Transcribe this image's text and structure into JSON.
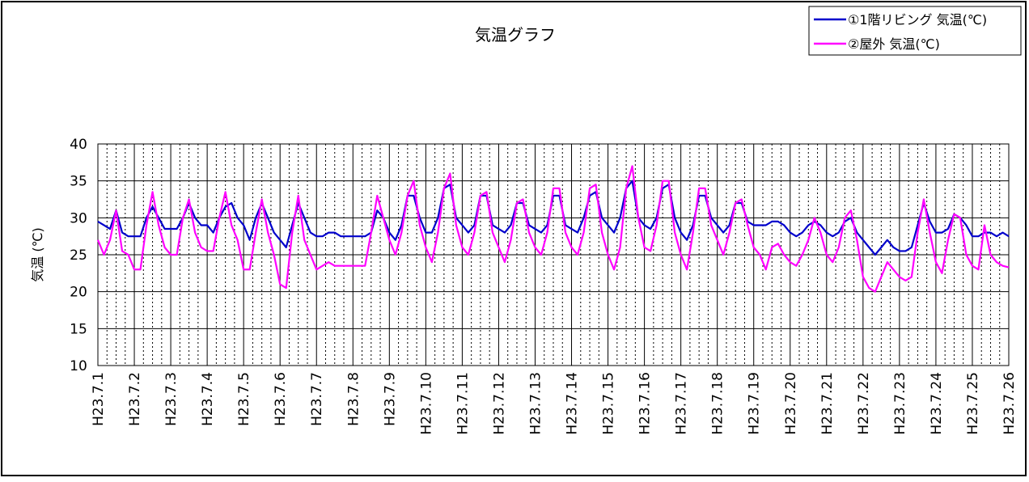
{
  "chart_data": {
    "type": "line",
    "title": "気温グラフ",
    "y_label": "気温 (℃)",
    "categories": [
      "H23.7.1",
      null,
      null,
      null,
      null,
      null,
      "H23.7.2",
      null,
      null,
      null,
      null,
      null,
      "H23.7.3",
      null,
      null,
      null,
      null,
      null,
      "H23.7.4",
      null,
      null,
      null,
      null,
      null,
      "H23.7.5",
      null,
      null,
      null,
      null,
      null,
      "H23.7.6",
      null,
      null,
      null,
      null,
      null,
      "H23.7.7",
      null,
      null,
      null,
      null,
      null,
      "H23.7.8",
      null,
      null,
      null,
      null,
      null,
      "H23.7.9",
      null,
      null,
      null,
      null,
      null,
      "H23.7.10",
      null,
      null,
      null,
      null,
      null,
      "H23.7.11",
      null,
      null,
      null,
      null,
      null,
      "H23.7.12",
      null,
      null,
      null,
      null,
      null,
      "H23.7.13",
      null,
      null,
      null,
      null,
      null,
      "H23.7.14",
      null,
      null,
      null,
      null,
      null,
      "H23.7.15",
      null,
      null,
      null,
      null,
      null,
      "H23.7.16",
      null,
      null,
      null,
      null,
      null,
      "H23.7.17",
      null,
      null,
      null,
      null,
      null,
      "H23.7.18",
      null,
      null,
      null,
      null,
      null,
      "H23.7.19",
      null,
      null,
      null,
      null,
      null,
      "H23.7.20",
      null,
      null,
      null,
      null,
      null,
      "H23.7.21",
      null,
      null,
      null,
      null,
      null,
      "H23.7.22",
      null,
      null,
      null,
      null,
      null,
      "H23.7.23",
      null,
      null,
      null,
      null,
      null,
      "H23.7.24",
      null,
      null,
      null,
      null,
      null,
      "H23.7.25",
      null,
      null,
      null,
      null,
      null,
      "H23.7.26"
    ],
    "series": [
      {
        "name": "①1階リビング 気温(℃)",
        "color": "#0000cc",
        "values": [
          29.5,
          29,
          28.5,
          31,
          28,
          27.5,
          27.5,
          27.5,
          30,
          31.5,
          30,
          28.5,
          28.5,
          28.5,
          30,
          32,
          30,
          29,
          29,
          28,
          30,
          31.5,
          32,
          30,
          29,
          27,
          30,
          32,
          30,
          28,
          27,
          26,
          29,
          32,
          30,
          28,
          27.5,
          27.5,
          28,
          28,
          27.5,
          27.5,
          27.5,
          27.5,
          27.5,
          28,
          31,
          30,
          28,
          27,
          29,
          33,
          33,
          30,
          28,
          28,
          30,
          34,
          34.5,
          30,
          29,
          28,
          29,
          33,
          33,
          29,
          28.5,
          28,
          29,
          32,
          32,
          29,
          28.5,
          28,
          29,
          33,
          33,
          29,
          28.5,
          28,
          30,
          33,
          33.5,
          30,
          29,
          28,
          30,
          34,
          35,
          30,
          29,
          28.5,
          30,
          34,
          34.5,
          30,
          28,
          27,
          29,
          33,
          33,
          30,
          29,
          28,
          29,
          32,
          32,
          29.5,
          29,
          29,
          29,
          29.5,
          29.5,
          29,
          28,
          27.5,
          28,
          29,
          29.5,
          29,
          28,
          27.5,
          28,
          29.5,
          30,
          28,
          27,
          26,
          25,
          26,
          27,
          26,
          25.5,
          25.5,
          26,
          29,
          32,
          29.5,
          28,
          28,
          28.5,
          30.5,
          30,
          29,
          27.5,
          27.5,
          28,
          28,
          27.5,
          28,
          27.5
        ]
      },
      {
        "name": "②屋外 気温(℃)",
        "color": "#ff00ff",
        "values": [
          27,
          25,
          27,
          31,
          25.5,
          25,
          23,
          23,
          29,
          33.5,
          29,
          26,
          25,
          25,
          30,
          32.5,
          28,
          26,
          25.5,
          25.5,
          30,
          33.5,
          29,
          27,
          23,
          23,
          28,
          32.5,
          28,
          25,
          21,
          20.5,
          28,
          33,
          27,
          25,
          23,
          23.5,
          24,
          23.5,
          23.5,
          23.5,
          23.5,
          23.5,
          23.5,
          28,
          33,
          30,
          27,
          25,
          28,
          33,
          35,
          29,
          26,
          24,
          28,
          34,
          36,
          29,
          26,
          25,
          28,
          33,
          33.5,
          28,
          26,
          24,
          27,
          32,
          32.5,
          28,
          26,
          25,
          28,
          34,
          34,
          28,
          26,
          25,
          28,
          34,
          34.5,
          28,
          25,
          23,
          26,
          34,
          37,
          30,
          26,
          25.5,
          29,
          35,
          35,
          28,
          25,
          23,
          28,
          34,
          34,
          29,
          27,
          25,
          28,
          32,
          32.5,
          29,
          26,
          25,
          23,
          26,
          26.5,
          25,
          24,
          23.5,
          25,
          27,
          30,
          28,
          25,
          24,
          26,
          30,
          31,
          27,
          22,
          20.5,
          20,
          22,
          24,
          23,
          22,
          21.5,
          22,
          28,
          32.5,
          28,
          24,
          22.5,
          27,
          30.5,
          30,
          25,
          23.5,
          23,
          29,
          25,
          24,
          23.5,
          23.3
        ]
      }
    ],
    "ylim": [
      10,
      40
    ],
    "yticks": [
      10,
      15,
      20,
      25,
      30,
      35,
      40
    ],
    "grid": true,
    "legend": "top-right"
  }
}
